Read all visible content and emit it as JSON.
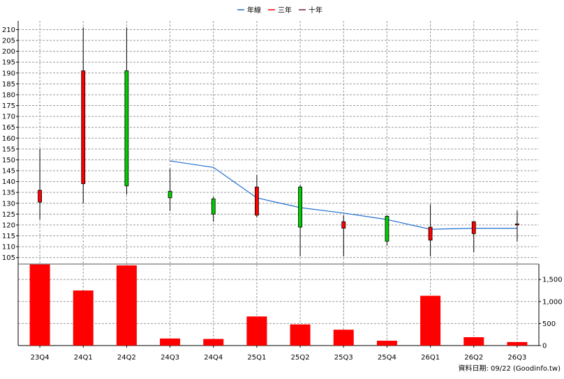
{
  "chart_data": {
    "type": "candlestick",
    "legend": [
      {
        "label": "年線",
        "color": "#1f6fcf"
      },
      {
        "label": "三年",
        "color": "#ff0000"
      },
      {
        "label": "十年",
        "color": "#7a1f3a"
      }
    ],
    "legend_position": "top-center",
    "categories": [
      "23Q4",
      "24Q1",
      "24Q2",
      "24Q3",
      "24Q4",
      "25Q1",
      "25Q2",
      "25Q3",
      "25Q4",
      "26Q1",
      "26Q2",
      "26Q3"
    ],
    "price_axis": {
      "ylim": [
        102,
        214
      ],
      "ticks": [
        105,
        110,
        115,
        120,
        125,
        130,
        135,
        140,
        145,
        150,
        155,
        160,
        165,
        170,
        175,
        180,
        185,
        190,
        195,
        200,
        205,
        210
      ],
      "position": "left",
      "grid": true
    },
    "candles": [
      {
        "open": 130.5,
        "close": 136,
        "high": 155,
        "low": 122.5
      },
      {
        "open": 139,
        "close": 191,
        "high": 211,
        "low": 130
      },
      {
        "open": 191,
        "close": 138,
        "high": 211,
        "low": 134
      },
      {
        "open": 135.5,
        "close": 132.5,
        "high": 146,
        "low": 126.5
      },
      {
        "open": 132,
        "close": 125,
        "high": 133,
        "low": 121.5
      },
      {
        "open": 124.5,
        "close": 137.5,
        "high": 143,
        "low": 123.5
      },
      {
        "open": 137.5,
        "close": 119,
        "high": 138.5,
        "low": 105.5
      },
      {
        "open": 118.5,
        "close": 121.5,
        "high": 124.5,
        "low": 105.5
      },
      {
        "open": 124,
        "close": 112.5,
        "high": 124.5,
        "low": 110.5
      },
      {
        "open": 113,
        "close": 119,
        "high": 129.5,
        "low": 105.5
      },
      {
        "open": 116,
        "close": 121.5,
        "high": 121.5,
        "low": 107.5
      },
      {
        "open": 120.5,
        "close": 120.5,
        "high": 126.5,
        "low": 112.5
      }
    ],
    "ma_line": {
      "name": "年線",
      "color": "#1f6fcf",
      "start_index": 3,
      "values": [
        149.5,
        146.5,
        132.5,
        128,
        125.5,
        122.5,
        118,
        118.5,
        118.5
      ]
    },
    "volume_axis": {
      "ylim": [
        0,
        1850
      ],
      "ticks": [
        0,
        500,
        1000,
        1500
      ],
      "tick_labels": [
        "0",
        "500",
        "1,000",
        "1,500"
      ],
      "position": "right",
      "grid": true
    },
    "volume": [
      1840,
      1250,
      1820,
      160,
      150,
      660,
      480,
      360,
      110,
      1130,
      190,
      80
    ],
    "up_color": "#ff0000",
    "down_color": "#00cc00",
    "volume_color": "#ff0000"
  },
  "footer_note": "資料日期: 09/22  (Goodinfo.tw)"
}
